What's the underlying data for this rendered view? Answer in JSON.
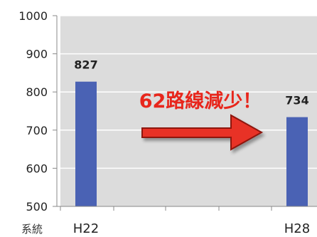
{
  "chart_data": {
    "type": "bar",
    "categories": [
      "H22",
      "H28"
    ],
    "values": [
      827,
      734
    ],
    "value_labels": [
      "827",
      "734"
    ],
    "ylim": [
      500,
      1000
    ],
    "yticks": [
      "500",
      "600",
      "700",
      "800",
      "900",
      "1000"
    ],
    "ylabel": "系統",
    "xlabel": "",
    "annotation": "62路線減少！",
    "grid": true,
    "legend": "none",
    "colors": {
      "bar": "#4A62B4",
      "plot_bg": "#DCDCDC",
      "arrow_fill": "#E83225",
      "arrow_edge": "#8E1410",
      "annotation_text": "#E8261C",
      "grid": "#FFFFFF"
    }
  }
}
